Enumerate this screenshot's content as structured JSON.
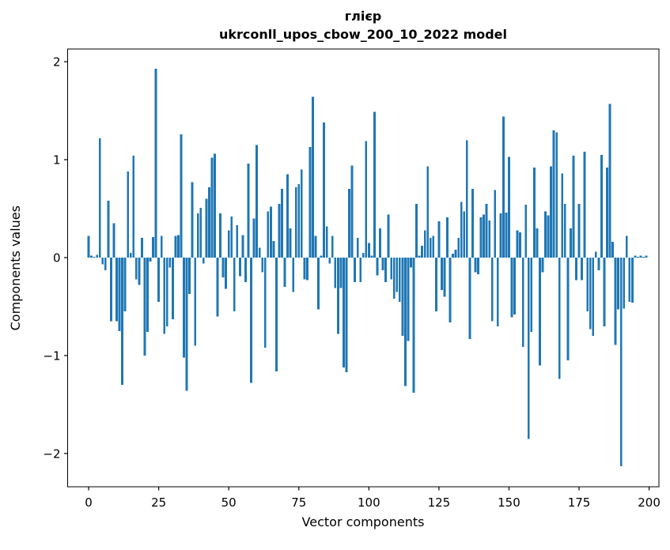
{
  "figure": {
    "title_line1": "глієр",
    "title_line2": "ukrconll_upos_cbow_200_10_2022 model",
    "xlabel": "Vector components",
    "ylabel": "Components values",
    "bar_color": "#1f77b4",
    "axis_color": "#000000",
    "background": "#ffffff"
  },
  "chart_data": {
    "type": "bar",
    "title": "глієр",
    "subtitle": "ukrconll_upos_cbow_200_10_2022 model",
    "xlabel": "Vector components",
    "ylabel": "Components values",
    "legend": "none",
    "grid": false,
    "n_components": 200,
    "x_ticks": [
      0,
      25,
      50,
      75,
      100,
      125,
      150,
      175,
      200
    ],
    "y_ticks": [
      -2,
      -1,
      0,
      1,
      2
    ],
    "xlim": [
      -7.5,
      203.5
    ],
    "ylim": [
      -2.34,
      2.13
    ],
    "bar_width": 0.8,
    "values": [
      0.22,
      0.02,
      0.01,
      0.03,
      1.22,
      -0.07,
      -0.13,
      0.58,
      -0.65,
      0.35,
      -0.65,
      -0.75,
      -1.3,
      -0.55,
      0.88,
      0.05,
      1.04,
      -0.22,
      -0.28,
      0.2,
      -1.0,
      -0.76,
      -0.04,
      0.21,
      1.93,
      -0.45,
      0.22,
      -0.78,
      -0.7,
      -0.1,
      -0.63,
      0.22,
      0.23,
      1.26,
      -1.02,
      -1.36,
      -0.37,
      0.77,
      -0.9,
      0.45,
      0.51,
      -0.06,
      0.6,
      0.72,
      1.02,
      1.06,
      -0.6,
      0.45,
      -0.2,
      -0.32,
      0.28,
      0.42,
      -0.55,
      0.33,
      -0.19,
      0.23,
      -0.25,
      0.96,
      -1.28,
      0.4,
      1.15,
      0.1,
      -0.15,
      -0.92,
      0.47,
      0.52,
      0.17,
      -1.16,
      0.55,
      0.7,
      -0.3,
      0.85,
      0.3,
      -0.35,
      0.72,
      0.75,
      0.9,
      -0.22,
      -0.23,
      1.13,
      1.64,
      0.22,
      -0.53,
      0.02,
      1.38,
      0.32,
      -0.06,
      0.22,
      -0.31,
      -0.78,
      -0.31,
      -1.12,
      -1.17,
      0.7,
      0.94,
      -0.25,
      0.2,
      -0.25,
      0.05,
      1.19,
      0.15,
      0.02,
      1.49,
      -0.18,
      0.3,
      -0.13,
      -0.25,
      0.44,
      -0.22,
      -0.42,
      -0.35,
      -0.45,
      -0.8,
      -1.31,
      -0.85,
      -0.1,
      -1.38,
      0.55,
      0.02,
      0.12,
      0.28,
      0.93,
      0.2,
      0.22,
      -0.55,
      0.37,
      -0.33,
      -0.4,
      0.41,
      -0.66,
      0.04,
      0.08,
      0.2,
      0.57,
      0.47,
      1.2,
      -0.83,
      0.7,
      -0.15,
      -0.17,
      0.41,
      0.44,
      0.55,
      0.38,
      -0.65,
      0.69,
      -0.7,
      0.45,
      1.44,
      0.46,
      1.03,
      -0.61,
      -0.58,
      0.28,
      0.26,
      -0.91,
      0.54,
      -1.85,
      -0.76,
      0.92,
      0.3,
      -1.1,
      -0.15,
      0.47,
      0.43,
      0.93,
      1.3,
      1.28,
      -1.24,
      0.86,
      0.55,
      -1.05,
      0.3,
      1.04,
      -0.23,
      0.55,
      -0.23,
      1.08,
      -0.55,
      -0.73,
      -0.8,
      0.06,
      -0.13,
      1.05,
      -0.7,
      0.92,
      1.57,
      0.16,
      -0.89,
      -0.53,
      -2.13,
      -0.52,
      0.22,
      -0.45,
      -0.46,
      0.02,
      0.01,
      0.02,
      0.01,
      0.02
    ]
  }
}
